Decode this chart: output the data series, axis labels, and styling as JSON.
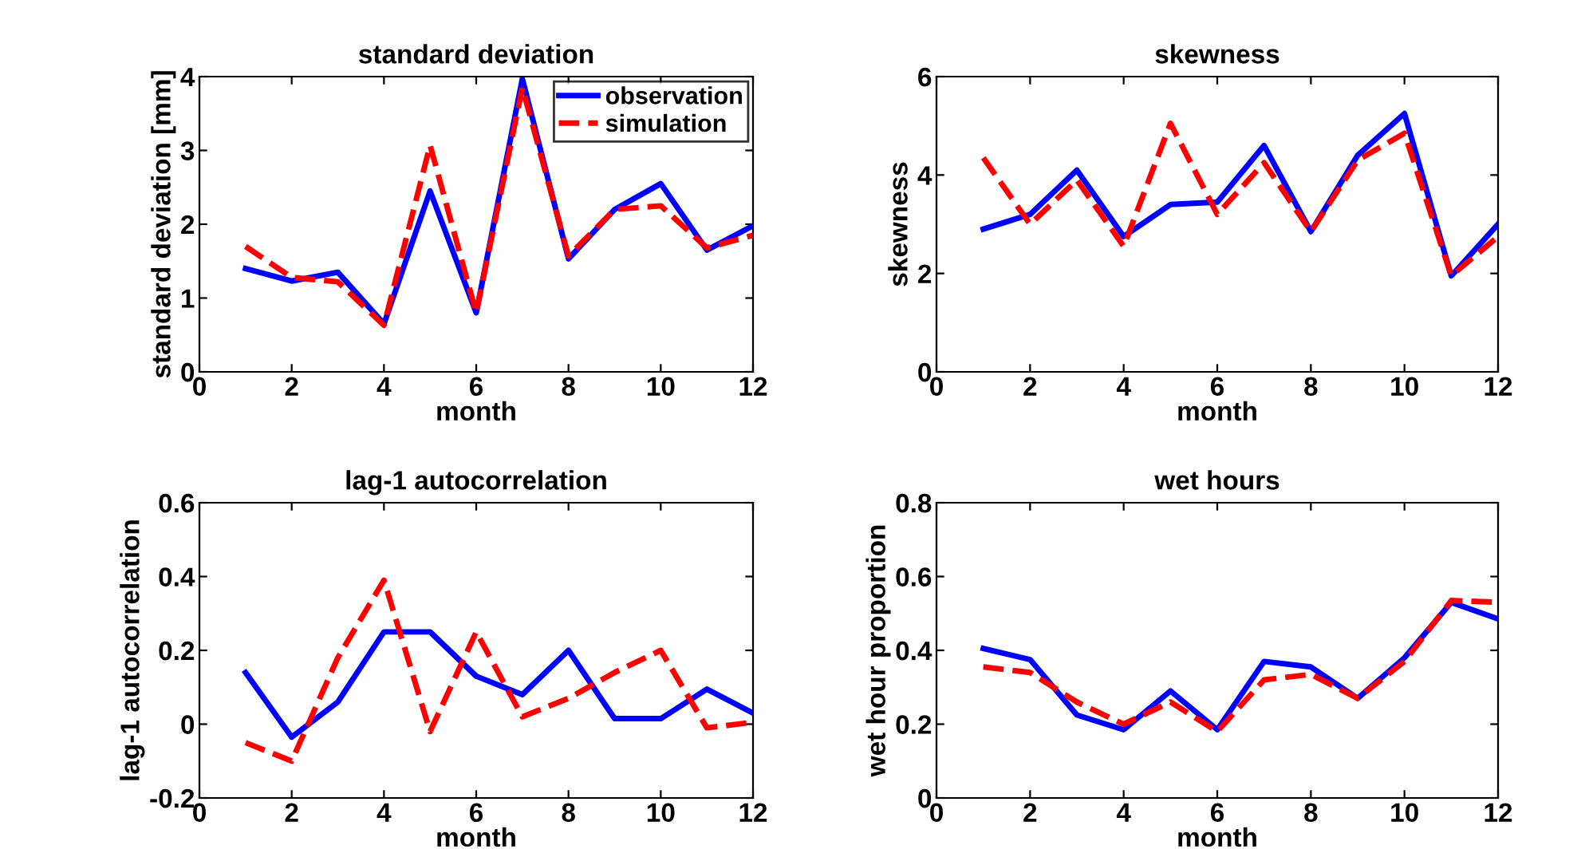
{
  "chart_data": [
    {
      "type": "line",
      "title": "standard deviation",
      "xlabel": "month",
      "ylabel": "standard deviation [mm]",
      "x": [
        1,
        2,
        3,
        4,
        5,
        6,
        7,
        8,
        9,
        10,
        11,
        12
      ],
      "xlim": [
        0,
        12
      ],
      "xticks": [
        0,
        2,
        4,
        6,
        8,
        10,
        12
      ],
      "ylim": [
        0,
        4
      ],
      "yticks": [
        0,
        1,
        2,
        3,
        4
      ],
      "legend": "top right",
      "grid": false,
      "series": [
        {
          "name": "observation",
          "color": "#0000ff",
          "line_style": "solid",
          "values": [
            1.4,
            1.23,
            1.35,
            0.65,
            2.45,
            0.8,
            3.97,
            1.53,
            2.2,
            2.55,
            1.65,
            1.98
          ]
        },
        {
          "name": "simulation",
          "color": "#ff0000",
          "line_style": "dashed",
          "values": [
            1.7,
            1.28,
            1.22,
            0.63,
            3.07,
            0.8,
            3.85,
            1.57,
            2.2,
            2.25,
            1.68,
            1.85
          ]
        }
      ]
    },
    {
      "type": "line",
      "title": "skewness",
      "xlabel": "month",
      "ylabel": "skewness",
      "x": [
        1,
        2,
        3,
        4,
        5,
        6,
        7,
        8,
        9,
        10,
        11,
        12
      ],
      "xlim": [
        0,
        12
      ],
      "xticks": [
        0,
        2,
        4,
        6,
        8,
        10,
        12
      ],
      "ylim": [
        0,
        6
      ],
      "yticks": [
        0,
        2,
        4,
        6
      ],
      "grid": false,
      "series": [
        {
          "color": "#0000ff",
          "line_style": "solid",
          "values": [
            2.9,
            3.2,
            4.1,
            2.75,
            3.4,
            3.45,
            4.6,
            2.85,
            4.4,
            5.25,
            1.95,
            3.0
          ]
        },
        {
          "color": "#ff0000",
          "line_style": "dashed",
          "values": [
            4.35,
            3.0,
            3.9,
            2.55,
            5.05,
            3.2,
            4.25,
            2.85,
            4.3,
            4.85,
            1.95,
            2.75
          ]
        }
      ]
    },
    {
      "type": "line",
      "title": "lag-1 autocorrelation",
      "xlabel": "month",
      "ylabel": "lag-1 autocorrelation",
      "x": [
        1,
        2,
        3,
        4,
        5,
        6,
        7,
        8,
        9,
        10,
        11,
        12
      ],
      "xlim": [
        0,
        12
      ],
      "xticks": [
        0,
        2,
        4,
        6,
        8,
        10,
        12
      ],
      "ylim": [
        -0.2,
        0.6
      ],
      "yticks": [
        -0.2,
        0,
        0.2,
        0.4,
        0.6
      ],
      "grid": false,
      "series": [
        {
          "color": "#0000ff",
          "line_style": "solid",
          "values": [
            0.14,
            -0.035,
            0.06,
            0.25,
            0.25,
            0.13,
            0.08,
            0.2,
            0.015,
            0.015,
            0.095,
            0.03
          ]
        },
        {
          "color": "#ff0000",
          "line_style": "dashed",
          "values": [
            -0.05,
            -0.1,
            0.18,
            0.39,
            -0.02,
            0.25,
            0.02,
            0.07,
            0.14,
            0.2,
            -0.01,
            0.005
          ]
        }
      ]
    },
    {
      "type": "line",
      "title": "wet hours",
      "xlabel": "month",
      "ylabel": "wet hour proportion",
      "x": [
        1,
        2,
        3,
        4,
        5,
        6,
        7,
        8,
        9,
        10,
        11,
        12
      ],
      "xlim": [
        0,
        12
      ],
      "xticks": [
        0,
        2,
        4,
        6,
        8,
        10,
        12
      ],
      "ylim": [
        0,
        0.8
      ],
      "yticks": [
        0,
        0.2,
        0.4,
        0.6,
        0.8
      ],
      "grid": false,
      "series": [
        {
          "color": "#0000ff",
          "line_style": "solid",
          "values": [
            0.405,
            0.375,
            0.225,
            0.185,
            0.29,
            0.185,
            0.37,
            0.355,
            0.27,
            0.38,
            0.53,
            0.485
          ]
        },
        {
          "color": "#ff0000",
          "line_style": "dashed",
          "values": [
            0.355,
            0.34,
            0.26,
            0.2,
            0.26,
            0.18,
            0.32,
            0.335,
            0.27,
            0.37,
            0.535,
            0.53
          ]
        }
      ]
    }
  ]
}
